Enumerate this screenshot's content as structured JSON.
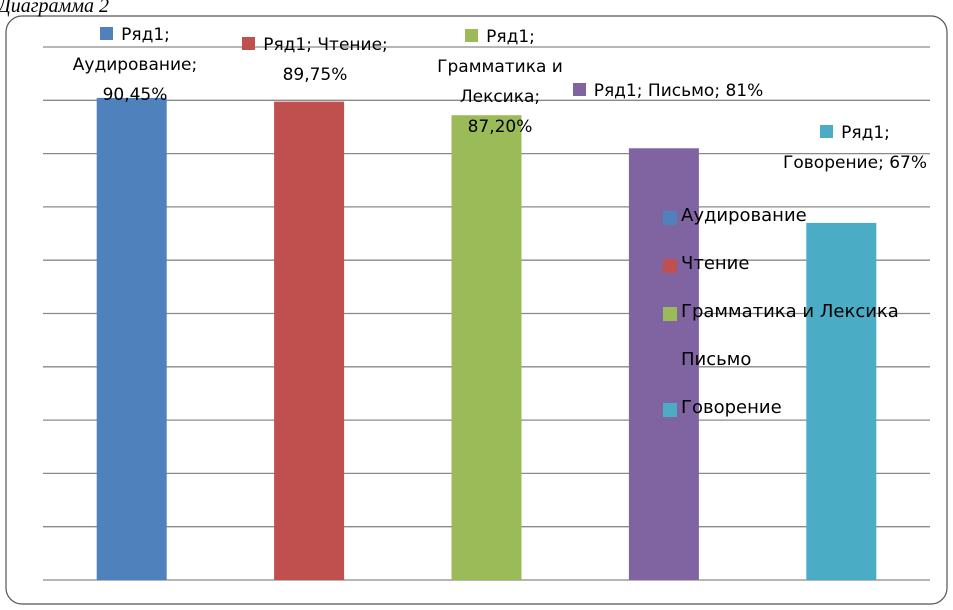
{
  "chart_data": {
    "type": "bar",
    "title": "Диаграмма 2",
    "categories": [
      "Аудирование",
      "Чтение",
      "Грамматика и Лексика",
      "Письмо",
      "Говорение"
    ],
    "series": [
      {
        "name": "Ряд1",
        "colors": [
          "#4f81bd",
          "#c0504d",
          "#9bbb59",
          "#8064a2",
          "#4bacc6"
        ],
        "values": [
          90.45,
          89.75,
          87.2,
          81,
          67
        ],
        "value_labels": [
          "90,45%",
          "89,75%",
          "87,20%",
          "81%",
          "67%"
        ]
      }
    ],
    "label_separator": ";",
    "ylim": [
      0,
      100
    ],
    "yticks": [
      0,
      10,
      20,
      30,
      40,
      50,
      60,
      70,
      80,
      90,
      100
    ],
    "grid": true,
    "legend": "right"
  }
}
